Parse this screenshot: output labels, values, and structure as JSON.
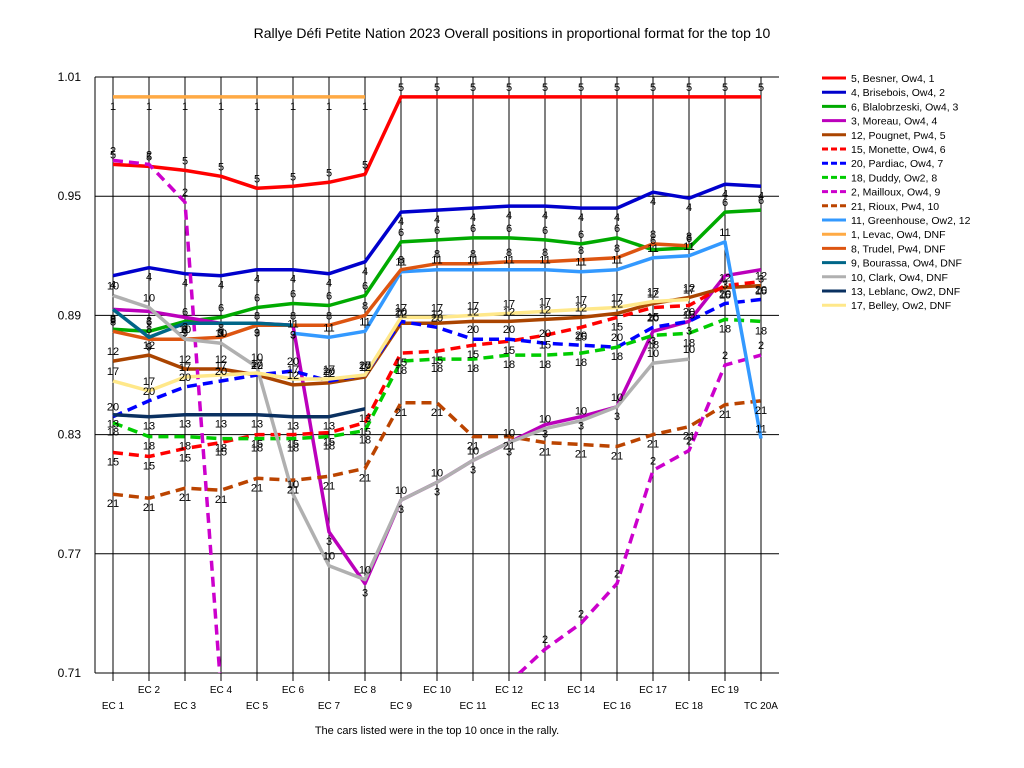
{
  "chart_data": {
    "type": "line",
    "title": "Rallye Défi Petite Nation 2023  Overall positions in proportional format for the top 10",
    "footnote": "The cars listed were in the top 10 once in the rally.",
    "xlabel": "",
    "ylabel": "",
    "ylim": [
      0.71,
      1.01
    ],
    "yticks": [
      "1.01",
      "0.95",
      "0.89",
      "0.83",
      "0.77",
      "0.71"
    ],
    "categories": [
      "EC 1",
      "EC 2",
      "EC 3",
      "EC 4",
      "EC 5",
      "EC 6",
      "EC 7",
      "EC 8",
      "EC 9",
      "EC 10",
      "EC 11",
      "EC 12",
      "EC 13",
      "EC 14",
      "EC 16",
      "EC 17",
      "EC 18",
      "EC 19",
      "TC 20A"
    ],
    "grid": "vertical lines at every stage, horizontal lines at major ticks",
    "legend_position": "right",
    "series": [
      {
        "name": "5, Besner, Ow4, 1",
        "color": "#ff0000",
        "dash": false,
        "label": "5",
        "values": [
          0.966,
          0.965,
          0.963,
          0.96,
          0.954,
          0.955,
          0.957,
          0.961,
          1.0,
          1.0,
          1.0,
          1.0,
          1.0,
          1.0,
          1.0,
          1.0,
          1.0,
          1.0,
          1.0
        ]
      },
      {
        "name": "4, Brisebois, Ow4, 2",
        "color": "#0000cc",
        "dash": false,
        "label": "4",
        "values": [
          0.91,
          0.914,
          0.911,
          0.91,
          0.913,
          0.913,
          0.911,
          0.917,
          0.942,
          0.943,
          0.944,
          0.945,
          0.945,
          0.944,
          0.944,
          0.952,
          0.949,
          0.956,
          0.955
        ]
      },
      {
        "name": "6, Blalobrzeski, Ow4, 3",
        "color": "#00aa00",
        "dash": false,
        "label": "6",
        "values": [
          0.883,
          0.882,
          0.887,
          0.889,
          0.894,
          0.896,
          0.895,
          0.9,
          0.927,
          0.928,
          0.929,
          0.929,
          0.928,
          0.926,
          0.929,
          0.923,
          0.924,
          0.942,
          0.943
        ]
      },
      {
        "name": "3, Moreau, Ow4, 4",
        "color": "#bb00bb",
        "dash": false,
        "label": "3",
        "values": [
          0.893,
          0.892,
          0.889,
          0.886,
          0.886,
          0.885,
          0.781,
          0.755,
          0.797,
          0.806,
          0.817,
          0.826,
          0.835,
          0.839,
          0.844,
          0.882,
          0.887,
          0.91,
          0.913
        ]
      },
      {
        "name": "12, Pougnet, Pw4, 5",
        "color": "#aa4400",
        "dash": false,
        "label": "12",
        "values": [
          0.867,
          0.87,
          0.863,
          0.863,
          0.86,
          0.855,
          0.856,
          0.859,
          0.886,
          0.886,
          0.887,
          0.887,
          0.888,
          0.889,
          0.891,
          0.896,
          0.899,
          0.904,
          0.905
        ]
      },
      {
        "name": "15, Monette, Ow4, 6",
        "color": "#ff0000",
        "dash": true,
        "label": "15",
        "values": [
          0.821,
          0.819,
          0.823,
          0.826,
          0.83,
          0.83,
          0.831,
          0.836,
          0.871,
          0.872,
          0.875,
          0.877,
          0.88,
          0.884,
          0.889,
          0.894,
          0.895,
          0.905,
          0.907
        ]
      },
      {
        "name": "20, Pardiac, Ow4, 7",
        "color": "#0000ff",
        "dash": true,
        "label": "20",
        "values": [
          0.839,
          0.847,
          0.854,
          0.857,
          0.86,
          0.862,
          0.857,
          0.86,
          0.887,
          0.884,
          0.878,
          0.878,
          0.876,
          0.875,
          0.874,
          0.884,
          0.887,
          0.896,
          0.898
        ]
      },
      {
        "name": "18, Duddy, Ow2, 8",
        "color": "#00cc00",
        "dash": true,
        "label": "18",
        "values": [
          0.836,
          0.829,
          0.829,
          0.828,
          0.828,
          0.828,
          0.829,
          0.832,
          0.867,
          0.868,
          0.868,
          0.87,
          0.87,
          0.871,
          0.874,
          0.88,
          0.881,
          0.888,
          0.887
        ]
      },
      {
        "name": "2, Mailloux, Ow4, 9",
        "color": "#cc00cc",
        "dash": true,
        "label": "2",
        "values": [
          0.968,
          0.966,
          0.947,
          0.701,
          null,
          null,
          null,
          null,
          null,
          null,
          null,
          0.705,
          0.722,
          0.735,
          0.755,
          0.812,
          0.822,
          0.865,
          0.87
        ]
      },
      {
        "name": "21, Rioux, Pw4, 10",
        "color": "#bb4400",
        "dash": true,
        "label": "21",
        "values": [
          0.8,
          0.798,
          0.803,
          0.802,
          0.808,
          0.807,
          0.809,
          0.813,
          0.846,
          0.846,
          0.829,
          0.829,
          0.826,
          0.825,
          0.824,
          0.83,
          0.834,
          0.845,
          0.847
        ]
      },
      {
        "name": "11, Greenhouse, Ow2, 12",
        "color": "#3399ff",
        "dash": false,
        "label": "11",
        "values": [
          null,
          null,
          null,
          null,
          null,
          0.881,
          0.879,
          0.882,
          0.912,
          0.913,
          0.913,
          0.913,
          0.913,
          0.912,
          0.913,
          0.919,
          0.92,
          0.927,
          0.828
        ]
      },
      {
        "name": "1, Levac, Ow4, DNF",
        "color": "#ffaa44",
        "dash": false,
        "label": "1",
        "values": [
          1.0,
          1.0,
          1.0,
          1.0,
          1.0,
          1.0,
          1.0,
          1.0,
          null,
          null,
          null,
          null,
          null,
          null,
          null,
          null,
          null,
          null,
          null
        ]
      },
      {
        "name": "8, Trudel, Pw4, DNF",
        "color": "#dd5511",
        "dash": false,
        "label": "8",
        "values": [
          0.882,
          0.878,
          0.878,
          0.879,
          0.885,
          0.885,
          0.885,
          0.89,
          0.913,
          0.916,
          0.916,
          0.917,
          0.917,
          0.918,
          0.919,
          0.926,
          0.925,
          null,
          null
        ]
      },
      {
        "name": "9, Bourassa, Ow4, DNF",
        "color": "#006688",
        "dash": false,
        "label": "9",
        "values": [
          0.893,
          0.879,
          0.886,
          0.886,
          0.886,
          0.885,
          null,
          null,
          null,
          null,
          null,
          null,
          null,
          null,
          null,
          null,
          null,
          null,
          null
        ]
      },
      {
        "name": "10, Clark, Ow4, DNF",
        "color": "#b0b0b0",
        "dash": false,
        "label": "10",
        "values": [
          0.9,
          0.894,
          0.878,
          0.876,
          0.864,
          0.8,
          0.764,
          0.757,
          0.797,
          0.806,
          0.817,
          0.826,
          0.833,
          0.837,
          0.844,
          0.866,
          0.868,
          null,
          null
        ]
      },
      {
        "name": "13, Leblanc, Ow2, DNF",
        "color": "#0a3060",
        "dash": false,
        "label": "13",
        "values": [
          0.84,
          0.839,
          0.84,
          0.84,
          0.84,
          0.839,
          0.839,
          0.843,
          null,
          null,
          null,
          null,
          null,
          null,
          null,
          null,
          null,
          null,
          null
        ]
      },
      {
        "name": "17, Belley, Ow2, DNF",
        "color": "#ffe88a",
        "dash": false,
        "label": "17",
        "values": [
          0.857,
          0.852,
          0.859,
          0.86,
          0.861,
          0.858,
          0.858,
          0.86,
          0.889,
          0.889,
          0.89,
          0.891,
          0.892,
          0.893,
          0.894,
          0.897,
          0.898,
          null,
          null
        ]
      }
    ]
  }
}
